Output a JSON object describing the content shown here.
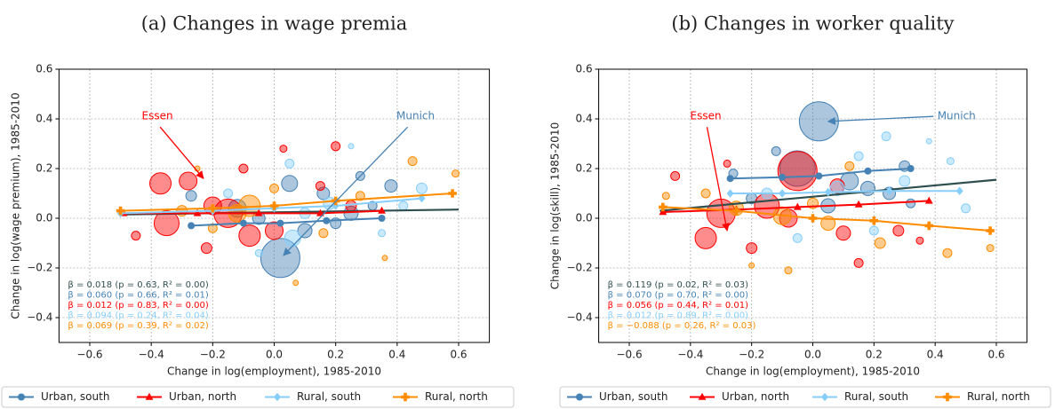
{
  "chart_data": [
    {
      "type": "scatter",
      "title": "(a) Changes in wage premia",
      "xlabel": "Change in log(employment), 1985-2010",
      "ylabel": "Change in log(wage premium), 1985-2010",
      "xlim": [
        -0.7,
        0.7
      ],
      "ylim": [
        -0.5,
        0.6
      ],
      "xticks": [
        {
          "value": -0.6,
          "label": "−0.6"
        },
        {
          "value": -0.4,
          "label": "−0.4"
        },
        {
          "value": -0.2,
          "label": "−0.2"
        },
        {
          "value": 0,
          "label": "0.0"
        },
        0.2,
        0.4,
        0.6
      ],
      "yticks": [
        {
          "value": -0.4,
          "label": "−0.4"
        },
        {
          "value": -0.2,
          "label": "−0.2"
        },
        {
          "value": 0,
          "label": "0.0"
        },
        0.2,
        0.4,
        0.6
      ],
      "grid": true,
      "legend": "lower center",
      "series": [
        {
          "name": "Urban, south",
          "color": "#4682b4",
          "marker": "circle",
          "x": [
            0.02,
            -0.12,
            0.05,
            0.16,
            0.25,
            -0.27,
            0.32,
            0.38,
            0.1,
            -0.05,
            0.2,
            0.28
          ],
          "y": [
            -0.16,
            0.04,
            0.14,
            0.1,
            0.02,
            0.09,
            0.05,
            0.13,
            -0.05,
            0.0,
            -0.02,
            0.17
          ],
          "sizes": [
            22,
            10,
            9,
            7,
            8,
            6,
            5,
            7,
            8,
            7,
            6,
            5
          ],
          "line_x": [
            -0.27,
            -0.1,
            0.02,
            0.17,
            0.35
          ],
          "line_y": [
            -0.03,
            -0.02,
            -0.02,
            -0.01,
            0.0
          ]
        },
        {
          "name": "Urban, north",
          "color": "#ff0000",
          "marker": "triangle",
          "x": [
            -0.37,
            -0.28,
            -0.35,
            -0.2,
            -0.08,
            -0.15,
            0.0,
            -0.45,
            0.2,
            0.03,
            0.15,
            -0.1,
            0.25,
            -0.22
          ],
          "y": [
            0.14,
            0.15,
            -0.02,
            0.05,
            -0.07,
            0.02,
            -0.05,
            -0.07,
            0.29,
            0.28,
            0.13,
            0.2,
            0.05,
            -0.12
          ],
          "sizes": [
            12,
            10,
            14,
            10,
            12,
            16,
            10,
            5,
            5,
            4,
            5,
            5,
            6,
            6
          ],
          "line_x": [
            -0.49,
            -0.25,
            -0.05,
            0.15,
            0.35
          ],
          "line_y": [
            0.02,
            0.02,
            0.02,
            0.02,
            0.03
          ]
        },
        {
          "name": "Rural, south",
          "color": "#87cefa",
          "marker": "diamond",
          "x": [
            0.06,
            0.18,
            0.48,
            0.25,
            0.05,
            -0.15,
            0.35,
            0.1,
            -0.05,
            0.42
          ],
          "y": [
            -0.08,
            0.06,
            0.12,
            0.29,
            0.22,
            0.1,
            -0.06,
            0.02,
            -0.14,
            0.05
          ],
          "sizes": [
            9,
            7,
            6,
            3,
            5,
            5,
            4,
            6,
            4,
            5
          ],
          "line_x": [
            -0.5,
            -0.2,
            0.0,
            0.2,
            0.48
          ],
          "line_y": [
            0.02,
            0.03,
            0.04,
            0.05,
            0.08
          ]
        },
        {
          "name": "Rural, north",
          "color": "#ff8c00",
          "marker": "plus",
          "x": [
            0.59,
            0.45,
            0.36,
            0.07,
            -0.25,
            -0.08,
            -0.12,
            0.28,
            0.16,
            -0.3,
            0.0,
            -0.2
          ],
          "y": [
            0.18,
            0.23,
            -0.16,
            -0.26,
            0.2,
            0.05,
            0.02,
            0.09,
            -0.06,
            0.03,
            0.12,
            -0.04
          ],
          "sizes": [
            4,
            5,
            3,
            3,
            3,
            12,
            10,
            5,
            5,
            6,
            5,
            5
          ],
          "line_x": [
            -0.5,
            -0.2,
            0.0,
            0.2,
            0.58
          ],
          "line_y": [
            0.03,
            0.04,
            0.05,
            0.07,
            0.1
          ]
        }
      ],
      "fit": {
        "color": "#2f4f4f",
        "x": [
          -0.5,
          0.6
        ],
        "y": [
          0.015,
          0.035
        ]
      },
      "stats": [
        {
          "text": "β = 0.018 (p = 0.63, R² = 0.00)",
          "color": "#2f4f4f"
        },
        {
          "text": "β = 0.060 (p = 0.66, R² = 0.01)",
          "color": "#4682b4"
        },
        {
          "text": "β = 0.012 (p = 0.83, R² = 0.00)",
          "color": "#ff0000"
        },
        {
          "text": "β = 0.094 (p = 0.24, R² = 0.04)",
          "color": "#87cefa"
        },
        {
          "text": "β = 0.069 (p = 0.39, R² = 0.02)",
          "color": "#ff8c00"
        }
      ],
      "annotations": [
        {
          "text": "Essen",
          "color": "#ff0000",
          "xy": [
            -0.23,
            0.16
          ],
          "xytext": [
            -0.38,
            0.41
          ]
        },
        {
          "text": "Munich",
          "color": "#4682b4",
          "xy": [
            0.03,
            -0.15
          ],
          "xytext": [
            0.46,
            0.41
          ]
        }
      ]
    },
    {
      "type": "scatter",
      "title": "(b) Changes in worker quality",
      "xlabel": "Change in log(employment), 1985-2010",
      "ylabel": "Change in log(skill), 1985-2010",
      "xlim": [
        -0.7,
        0.7
      ],
      "ylim": [
        -0.5,
        0.6
      ],
      "xticks": [
        {
          "value": -0.6,
          "label": "−0.6"
        },
        {
          "value": -0.4,
          "label": "−0.4"
        },
        {
          "value": -0.2,
          "label": "−0.2"
        },
        {
          "value": 0,
          "label": "0.0"
        },
        0.2,
        0.4,
        0.6
      ],
      "yticks": [
        {
          "value": -0.4,
          "label": "−0.4"
        },
        {
          "value": -0.2,
          "label": "−0.2"
        },
        {
          "value": 0,
          "label": "0.0"
        },
        0.2,
        0.4,
        0.6
      ],
      "grid": true,
      "legend": "lower center",
      "series": [
        {
          "name": "Urban, south",
          "color": "#4682b4",
          "marker": "circle",
          "x": [
            0.02,
            -0.05,
            0.12,
            0.3,
            0.25,
            -0.26,
            -0.12,
            0.18,
            0.05,
            -0.2,
            0.32
          ],
          "y": [
            0.39,
            0.2,
            0.15,
            0.21,
            0.1,
            0.18,
            0.27,
            0.12,
            0.05,
            0.08,
            0.06
          ],
          "sizes": [
            22,
            20,
            10,
            6,
            7,
            5,
            5,
            8,
            8,
            6,
            5
          ],
          "line_x": [
            -0.27,
            -0.1,
            0.02,
            0.18,
            0.32
          ],
          "line_y": [
            0.16,
            0.165,
            0.17,
            0.19,
            0.2
          ]
        },
        {
          "name": "Urban, north",
          "color": "#ff0000",
          "marker": "triangle",
          "x": [
            -0.05,
            -0.3,
            -0.35,
            -0.15,
            -0.45,
            -0.28,
            0.08,
            0.15,
            0.28,
            0.1,
            -0.08,
            -0.2,
            0.35
          ],
          "y": [
            0.19,
            0.02,
            -0.08,
            0.05,
            0.17,
            0.22,
            0.13,
            -0.18,
            -0.05,
            -0.06,
            0.0,
            -0.12,
            -0.09
          ],
          "sizes": [
            22,
            16,
            12,
            14,
            5,
            4,
            8,
            5,
            6,
            8,
            10,
            6,
            4
          ],
          "line_x": [
            -0.49,
            -0.25,
            -0.05,
            0.15,
            0.38
          ],
          "line_y": [
            0.025,
            0.035,
            0.045,
            0.055,
            0.07
          ]
        },
        {
          "name": "Rural, south",
          "color": "#87cefa",
          "marker": "diamond",
          "x": [
            0.24,
            0.38,
            0.45,
            0.5,
            0.08,
            -0.05,
            0.2,
            0.3,
            -0.15,
            0.15
          ],
          "y": [
            0.33,
            0.31,
            0.23,
            0.04,
            0.12,
            -0.08,
            -0.05,
            0.15,
            0.1,
            0.25
          ],
          "sizes": [
            5,
            3,
            4,
            5,
            8,
            5,
            5,
            6,
            6,
            5
          ],
          "line_x": [
            -0.27,
            -0.1,
            0.05,
            0.25,
            0.48
          ],
          "line_y": [
            0.1,
            0.1,
            0.105,
            0.11,
            0.11
          ]
        },
        {
          "name": "Rural, north",
          "color": "#ff8c00",
          "marker": "plus",
          "x": [
            0.58,
            0.44,
            -0.08,
            -0.2,
            -0.1,
            -0.25,
            0.05,
            0.12,
            0.22,
            -0.35,
            -0.48,
            0.0
          ],
          "y": [
            -0.12,
            -0.14,
            -0.21,
            -0.19,
            0.01,
            0.04,
            -0.02,
            0.21,
            -0.1,
            0.1,
            0.09,
            0.06
          ],
          "sizes": [
            4,
            5,
            4,
            3,
            10,
            8,
            8,
            5,
            6,
            5,
            4,
            6
          ],
          "line_x": [
            -0.49,
            -0.25,
            0.0,
            0.2,
            0.38,
            0.58
          ],
          "line_y": [
            0.045,
            0.03,
            0.0,
            -0.01,
            -0.03,
            -0.05
          ]
        }
      ],
      "fit": {
        "color": "#2f4f4f",
        "x": [
          -0.5,
          0.6
        ],
        "y": [
          0.03,
          0.155
        ]
      },
      "stats": [
        {
          "text": "β = 0.119 (p = 0.02, R² = 0.03)",
          "color": "#2f4f4f"
        },
        {
          "text": "β = 0.070 (p = 0.70, R² = 0.00)",
          "color": "#4682b4"
        },
        {
          "text": "β = 0.056 (p = 0.44, R² = 0.01)",
          "color": "#ff0000"
        },
        {
          "text": "β = 0.012 (p = 0.89, R² = 0.00)",
          "color": "#87cefa"
        },
        {
          "text": "β = −0.088 (p = 0.26, R² = 0.03)",
          "color": "#ff8c00"
        }
      ],
      "annotations": [
        {
          "text": "Essen",
          "color": "#ff0000",
          "xy": [
            -0.28,
            -0.05
          ],
          "xytext": [
            -0.35,
            0.41
          ]
        },
        {
          "text": "Munich",
          "color": "#4682b4",
          "xy": [
            0.05,
            0.39
          ],
          "xytext": [
            0.47,
            0.41
          ]
        }
      ]
    }
  ]
}
